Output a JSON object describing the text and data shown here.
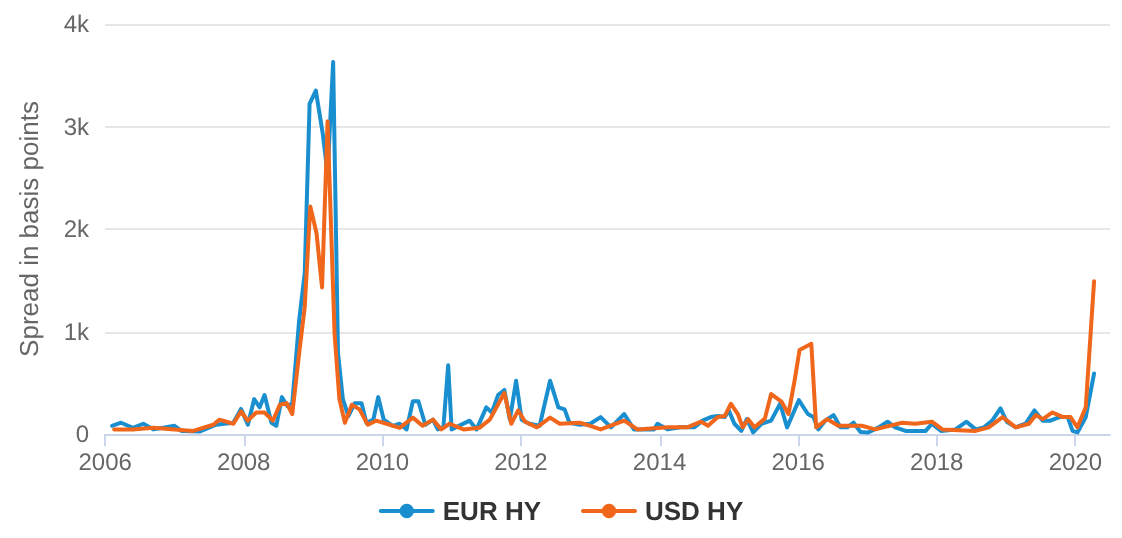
{
  "chart_data": {
    "type": "line",
    "ylabel": "Spread in basis points",
    "xlim": [
      2006,
      2020.5
    ],
    "xticks": [
      2006,
      2008,
      2010,
      2012,
      2014,
      2016,
      2018,
      2020
    ],
    "ylim": [
      0,
      4000
    ],
    "yticks": [
      {
        "value": 0,
        "label": "0"
      },
      {
        "value": 1000,
        "label": "1k"
      },
      {
        "value": 2000,
        "label": "2k"
      },
      {
        "value": 3000,
        "label": "3k"
      },
      {
        "value": 4000,
        "label": "4k"
      }
    ],
    "grid": "y",
    "legend": "bottom",
    "marker": "none",
    "line_style": "solid",
    "series": [
      {
        "name": "EUR HY",
        "color": "#1a8fd0",
        "x": [
          2006.1,
          2006.23,
          2006.4,
          2006.55,
          2006.7,
          2007.0,
          2007.1,
          2007.37,
          2007.6,
          2007.85,
          2007.96,
          2008.06,
          2008.15,
          2008.23,
          2008.3,
          2008.4,
          2008.47,
          2008.55,
          2008.63,
          2008.7,
          2008.8,
          2008.88,
          2008.95,
          2009.04,
          2009.14,
          2009.21,
          2009.29,
          2009.36,
          2009.43,
          2009.51,
          2009.6,
          2009.7,
          2009.77,
          2009.87,
          2009.94,
          2010.02,
          2010.15,
          2010.25,
          2010.35,
          2010.44,
          2010.52,
          2010.62,
          2010.73,
          2010.8,
          2010.88,
          2010.95,
          2011.0,
          2011.26,
          2011.36,
          2011.5,
          2011.58,
          2011.67,
          2011.76,
          2011.84,
          2011.93,
          2012.01,
          2012.12,
          2012.27,
          2012.42,
          2012.54,
          2012.63,
          2012.7,
          2012.85,
          2013.0,
          2013.15,
          2013.3,
          2013.49,
          2013.63,
          2013.92,
          2013.97,
          2014.12,
          2014.3,
          2014.5,
          2014.62,
          2014.74,
          2014.84,
          2014.94,
          2015.0,
          2015.08,
          2015.18,
          2015.26,
          2015.35,
          2015.47,
          2015.61,
          2015.74,
          2015.84,
          2016.01,
          2016.14,
          2016.22,
          2016.29,
          2016.39,
          2016.51,
          2016.61,
          2016.71,
          2016.8,
          2016.9,
          2017.01,
          2017.16,
          2017.29,
          2017.4,
          2017.55,
          2017.69,
          2017.84,
          2017.93,
          2018.06,
          2018.27,
          2018.43,
          2018.56,
          2018.68,
          2018.8,
          2018.92,
          2019.01,
          2019.14,
          2019.28,
          2019.41,
          2019.53,
          2019.64,
          2019.77,
          2019.89,
          2019.96,
          2020.03,
          2020.15,
          2020.27
        ],
        "values": [
          80,
          110,
          60,
          100,
          45,
          80,
          30,
          25,
          90,
          110,
          245,
          90,
          340,
          260,
          380,
          110,
          80,
          360,
          270,
          300,
          1110,
          1570,
          3220,
          3350,
          2930,
          2540,
          3630,
          790,
          340,
          175,
          300,
          300,
          110,
          140,
          360,
          140,
          80,
          100,
          45,
          320,
          320,
          90,
          140,
          45,
          60,
          670,
          45,
          130,
          45,
          260,
          210,
          380,
          430,
          140,
          520,
          140,
          100,
          80,
          520,
          260,
          240,
          110,
          90,
          100,
          165,
          65,
          195,
          45,
          45,
          100,
          45,
          65,
          65,
          130,
          165,
          175,
          165,
          230,
          100,
          30,
          145,
          15,
          100,
          130,
          295,
          65,
          330,
          195,
          165,
          45,
          130,
          185,
          65,
          65,
          110,
          20,
          15,
          65,
          120,
          65,
          30,
          30,
          30,
          100,
          30,
          45,
          120,
          45,
          65,
          130,
          250,
          120,
          65,
          100,
          230,
          130,
          130,
          165,
          165,
          30,
          15,
          165,
          590
        ]
      },
      {
        "name": "USD HY",
        "color": "#f0661a",
        "x": [
          2006.13,
          2006.4,
          2006.7,
          2007.0,
          2007.27,
          2007.56,
          2007.65,
          2007.85,
          2007.96,
          2008.06,
          2008.18,
          2008.3,
          2008.42,
          2008.52,
          2008.62,
          2008.7,
          2008.8,
          2008.88,
          2008.96,
          2009.05,
          2009.13,
          2009.21,
          2009.31,
          2009.38,
          2009.46,
          2009.56,
          2009.67,
          2009.79,
          2009.91,
          2010.06,
          2010.25,
          2010.44,
          2010.58,
          2010.73,
          2010.85,
          2010.97,
          2011.17,
          2011.4,
          2011.55,
          2011.76,
          2011.86,
          2011.96,
          2012.06,
          2012.23,
          2012.42,
          2012.56,
          2012.85,
          2013.0,
          2013.15,
          2013.49,
          2013.68,
          2014.12,
          2014.4,
          2014.6,
          2014.7,
          2014.84,
          2014.94,
          2015.03,
          2015.13,
          2015.2,
          2015.28,
          2015.37,
          2015.52,
          2015.61,
          2015.76,
          2015.86,
          2015.95,
          2016.02,
          2016.19,
          2016.26,
          2016.42,
          2016.58,
          2016.92,
          2017.11,
          2017.5,
          2017.69,
          2017.93,
          2018.08,
          2018.56,
          2018.75,
          2018.95,
          2019.14,
          2019.33,
          2019.43,
          2019.53,
          2019.67,
          2019.82,
          2019.93,
          2020.03,
          2020.15,
          2020.27
        ],
        "values": [
          45,
          45,
          60,
          45,
          30,
          90,
          140,
          100,
          220,
          130,
          210,
          210,
          130,
          285,
          300,
          195,
          790,
          1240,
          2220,
          1960,
          1430,
          3050,
          985,
          340,
          110,
          285,
          240,
          90,
          130,
          100,
          60,
          160,
          80,
          140,
          45,
          100,
          45,
          60,
          140,
          400,
          100,
          230,
          120,
          65,
          160,
          100,
          110,
          80,
          45,
          130,
          45,
          65,
          65,
          120,
          80,
          165,
          175,
          295,
          195,
          65,
          145,
          65,
          150,
          390,
          315,
          195,
          525,
          820,
          880,
          65,
          145,
          80,
          80,
          45,
          110,
          100,
          120,
          45,
          30,
          65,
          165,
          65,
          100,
          185,
          145,
          210,
          165,
          165,
          65,
          260,
          1490
        ]
      }
    ]
  }
}
